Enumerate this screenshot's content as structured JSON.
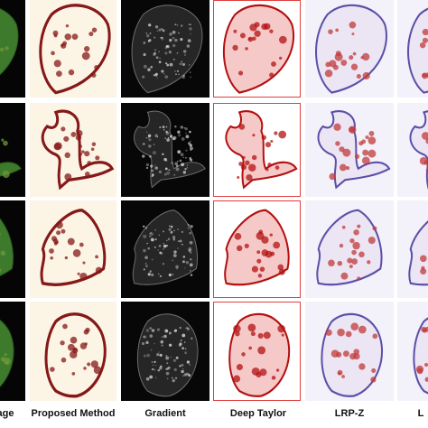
{
  "column_labels": [
    "age",
    "Proposed Method",
    "Gradient",
    "Deep Taylor",
    "LRP-Z",
    "L"
  ]
}
